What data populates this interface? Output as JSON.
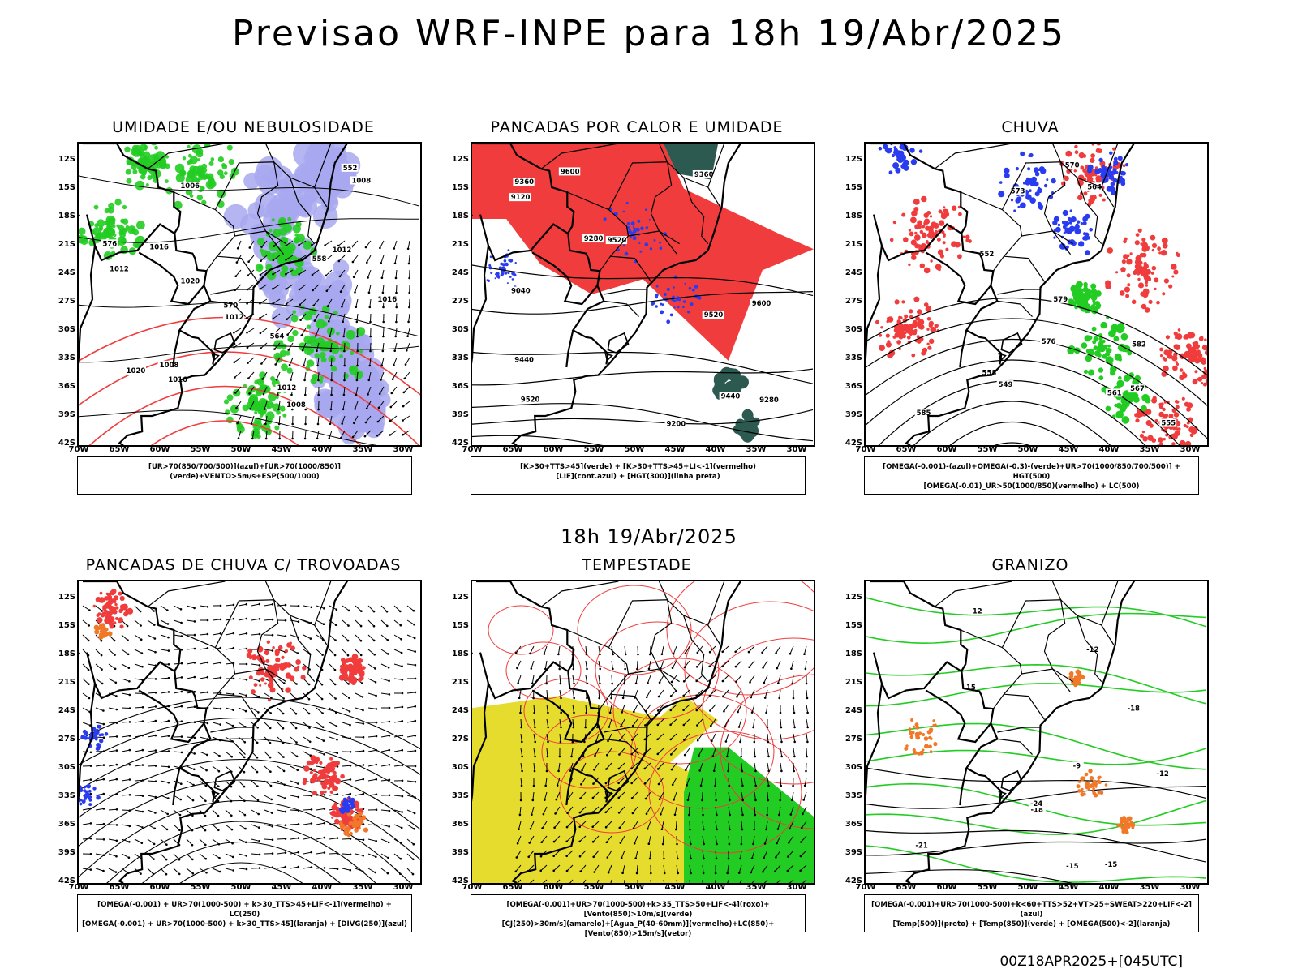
{
  "title": "Previsao WRF-INPE  para 18h 19/Abr/2025",
  "mid_title": "18h 19/Abr/2025",
  "footer": "00Z18APR2025+[045UTC]",
  "lat_labels": [
    "12S",
    "15S",
    "18S",
    "21S",
    "24S",
    "27S",
    "30S",
    "33S",
    "36S",
    "39S",
    "42S"
  ],
  "lon_labels": [
    "70W",
    "65W",
    "60W",
    "55W",
    "50W",
    "45W",
    "40W",
    "35W",
    "30W"
  ],
  "colors": {
    "red": "#f03c3c",
    "green": "#22cc22",
    "blue": "#2a3cf0",
    "lavender": "#a8a8f0",
    "yellow": "#e6dc2e",
    "darkteal": "#2c5a50",
    "orange": "#f07828",
    "black": "#000000"
  },
  "panels": [
    {
      "title": "UMIDADE E/OU NEBULOSIDADE",
      "legend": [
        "[UR>70(850/700/500)](azul)+[UR>70(1000/850)](verde)+VENTO>5m/s+ESP(500/1000)"
      ],
      "contour_labels": [
        "1008",
        "1006",
        "1008",
        "1016",
        "1012",
        "1012",
        "1016",
        "1020",
        "1012",
        "1016",
        "1020",
        "576",
        "570",
        "564",
        "558",
        "552",
        "1012",
        "1008"
      ]
    },
    {
      "title": "PANCADAS POR CALOR E UMIDADE",
      "legend": [
        "[K>30+TTS>45](verde) + [K>30+TTS>45+LI<-1](vermelho)",
        "[LIF](cont.azul) + [HGT(300)](linha preta)"
      ],
      "contour_labels": [
        "9520",
        "9600",
        "9520",
        "9600",
        "9520",
        "9440",
        "9440",
        "9360",
        "9280",
        "9200",
        "9120",
        "9040",
        "9360",
        "9280"
      ]
    },
    {
      "title": "CHUVA",
      "legend": [
        "[OMEGA(-0.001)-(azul)+OMEGA(-0.3)-(verde)+UR>70(1000/850/700/500)] + HGT(500)",
        "[OMEGA(-0.01)_UR>50(1000/850)(vermelho) + LC(500)"
      ],
      "contour_labels": [
        "585",
        "582",
        "579",
        "576",
        "573",
        "570",
        "567",
        "564",
        "561",
        "558",
        "555",
        "552",
        "549"
      ]
    },
    {
      "title": "PANCADAS DE CHUVA C/ TROVOADAS",
      "legend": [
        "[OMEGA(-0.001) + UR>70(1000-500) + k>30_TTS>45+LIF<-1](vermelho) + LC(250)",
        "[OMEGA(-0.001) + UR>70(1000-500) + k>30_TTS>45](laranja) + [DIVG(250)](azul)"
      ],
      "contour_labels": []
    },
    {
      "title": "TEMPESTADE",
      "legend": [
        "[OMEGA(-0.001)+UR>70(1000-500)+k>35_TTS>50+LIF<-4](roxo)+[Vento(850)>10m/s](verde)",
        "[CJ(250)>30m/s](amarelo)+[Agua_P(40-60mm)](vermelho)+LC(850)+[Vento(850)>15m/s](vetor)"
      ],
      "contour_labels": []
    },
    {
      "title": "GRANIZO",
      "legend": [
        "[OMEGA(-0.001)+UR>70(1000-500)+k<60+TTS>52+VT>25+SWEAT>220+LIF<-2](azul)",
        "[Temp(500)](preto) + [Temp(850)](verde) + [OMEGA(500)<-2](laranja)"
      ],
      "contour_labels": [
        "-12",
        "-15",
        "-18",
        "-21",
        "-24",
        "15",
        "12",
        "-12",
        "-15",
        "-18",
        "-9"
      ]
    }
  ]
}
